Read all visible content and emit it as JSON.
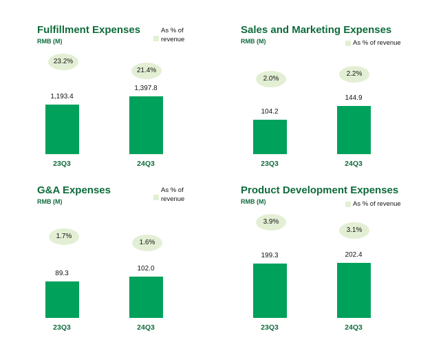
{
  "chart_data": [
    {
      "type": "bar",
      "title": "Fulfillment Expenses",
      "unit": "RMB (M)",
      "legend": "As % of revenue",
      "legend_lines": [
        "As % of",
        "revenue"
      ],
      "categories": [
        "23Q3",
        "24Q3"
      ],
      "values": [
        1193.4,
        1397.8
      ],
      "value_labels": [
        "1,193.4",
        "1,397.8"
      ],
      "pct_of_revenue": [
        "23.2%",
        "21.4%"
      ]
    },
    {
      "type": "bar",
      "title": "Sales and Marketing Expenses",
      "unit": "RMB (M)",
      "legend": "As % of revenue",
      "legend_lines": [
        "As % of revenue"
      ],
      "categories": [
        "23Q3",
        "24Q3"
      ],
      "values": [
        104.2,
        144.9
      ],
      "value_labels": [
        "104.2",
        "144.9"
      ],
      "pct_of_revenue": [
        "2.0%",
        "2.2%"
      ]
    },
    {
      "type": "bar",
      "title": "G&A Expenses",
      "unit": "RMB (M)",
      "legend": "As % of revenue",
      "legend_lines": [
        "As % of",
        "revenue"
      ],
      "categories": [
        "23Q3",
        "24Q3"
      ],
      "values": [
        89.3,
        102.0
      ],
      "value_labels": [
        "89.3",
        "102.0"
      ],
      "pct_of_revenue": [
        "1.7%",
        "1.6%"
      ]
    },
    {
      "type": "bar",
      "title": "Product Development Expenses",
      "unit": "RMB (M)",
      "legend": "As % of revenue",
      "legend_lines": [
        "As % of revenue"
      ],
      "categories": [
        "23Q3",
        "24Q3"
      ],
      "values": [
        199.3,
        202.4
      ],
      "value_labels": [
        "199.3",
        "202.4"
      ],
      "pct_of_revenue": [
        "3.9%",
        "3.1%"
      ]
    }
  ],
  "colors": {
    "bar": "#00a15b",
    "title": "#0e6b3b",
    "pct_bubble": "#e3efd4"
  }
}
